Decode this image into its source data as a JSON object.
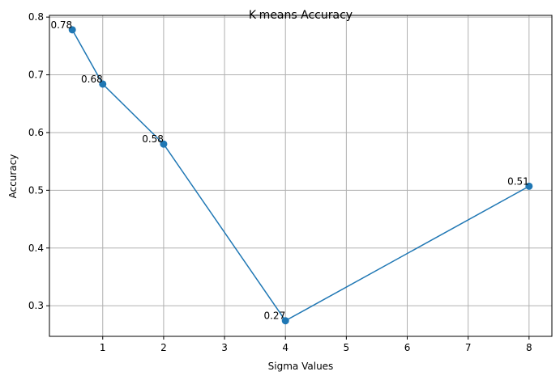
{
  "chart_data": {
    "type": "line",
    "title": "K-means Accuracy",
    "xlabel": "Sigma Values",
    "ylabel": "Accuracy",
    "x": [
      0.5,
      1,
      2,
      4,
      8
    ],
    "x_positions": [
      0.5,
      1,
      2,
      4,
      8
    ],
    "xticks": [
      "1",
      "2",
      "3",
      "4",
      "5",
      "6",
      "7",
      "8"
    ],
    "xtick_values": [
      1,
      2,
      3,
      4,
      5,
      6,
      7,
      8
    ],
    "xlim": [
      0.125,
      8.375
    ],
    "ylim": [
      0.247,
      0.803
    ],
    "yticks": [
      "0.3",
      "0.4",
      "0.5",
      "0.6",
      "0.7",
      "0.8"
    ],
    "ytick_values": [
      0.3,
      0.4,
      0.5,
      0.6,
      0.7,
      0.8
    ],
    "series": [
      {
        "values": [
          0.778,
          0.684,
          0.58,
          0.274,
          0.507
        ],
        "labels": [
          "0.78",
          "0.68",
          "0.58",
          "0.27",
          "0.51"
        ],
        "color": "#1f77b4",
        "marker": "circle"
      }
    ],
    "grid": true
  }
}
